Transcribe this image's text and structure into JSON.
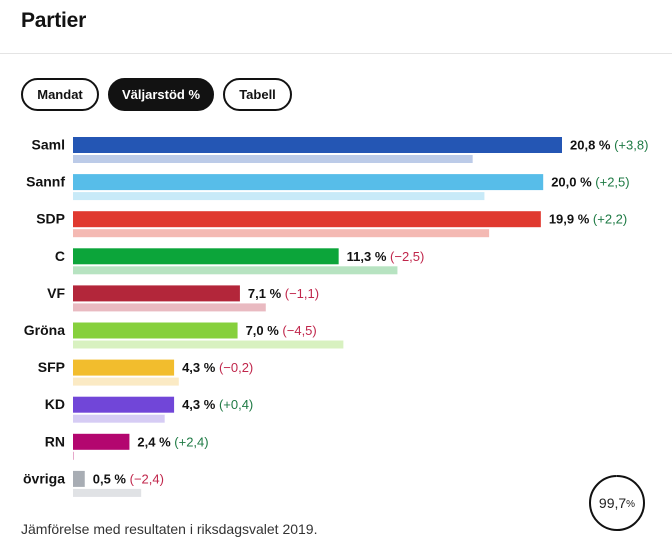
{
  "page": {
    "title": "Partier",
    "footnote": "Jämförelse med resultaten i riksdagsvalet 2019."
  },
  "tabs": [
    {
      "label": "Mandat",
      "active": false
    },
    {
      "label": "Väljarstöd %",
      "active": true
    },
    {
      "label": "Tabell",
      "active": false
    }
  ],
  "counted": {
    "value": "99,7",
    "unit": "%",
    "fraction": 0.997
  },
  "colors": {
    "positive": "#1e7a44",
    "negative": "#c0264b",
    "ink": "#121212"
  },
  "chart_data": {
    "type": "bar",
    "orientation": "horizontal",
    "x_max": 20.8,
    "categories": [
      "Saml",
      "Sannf",
      "SDP",
      "C",
      "VF",
      "Gröna",
      "SFP",
      "KD",
      "RN",
      "övriga"
    ],
    "series": [
      {
        "name": "Väljarstöd %",
        "values": [
          20.8,
          20.0,
          19.9,
          11.3,
          7.1,
          7.0,
          4.3,
          4.3,
          2.4,
          0.5
        ]
      },
      {
        "name": "Riksdagsvalet 2019",
        "values": [
          17.0,
          17.5,
          17.7,
          13.8,
          8.2,
          11.5,
          4.5,
          3.9,
          0.0,
          2.9
        ]
      }
    ],
    "value_labels": [
      "20,8 %",
      "20,0 %",
      "19,9 %",
      "11,3 %",
      "7,1 %",
      "7,0 %",
      "4,3 %",
      "4,3 %",
      "2,4 %",
      "0,5 %"
    ],
    "change_labels": [
      "(+3,8)",
      "(+2,5)",
      "(+2,2)",
      "(−2,5)",
      "(−1,1)",
      "(−4,5)",
      "(−0,2)",
      "(+0,4)",
      "(+2,4)",
      "(−2,4)"
    ],
    "changes": [
      3.8,
      2.5,
      2.2,
      -2.5,
      -1.1,
      -4.5,
      -0.2,
      0.4,
      2.4,
      -2.4
    ],
    "colors": [
      "#2456b4",
      "#57bde9",
      "#e0392f",
      "#0ca53a",
      "#b3263a",
      "#86d03c",
      "#f2bd2d",
      "#7146d8",
      "#b3066f",
      "#a8adb4"
    ],
    "colors_2019": [
      "#bccbe8",
      "#c8eaf8",
      "#f4b9b3",
      "#b7e3c1",
      "#e9bac1",
      "#d8f1c0",
      "#fbeac4",
      "#d6ccf4",
      "#e7a9cb",
      "#e0e2e5"
    ]
  }
}
